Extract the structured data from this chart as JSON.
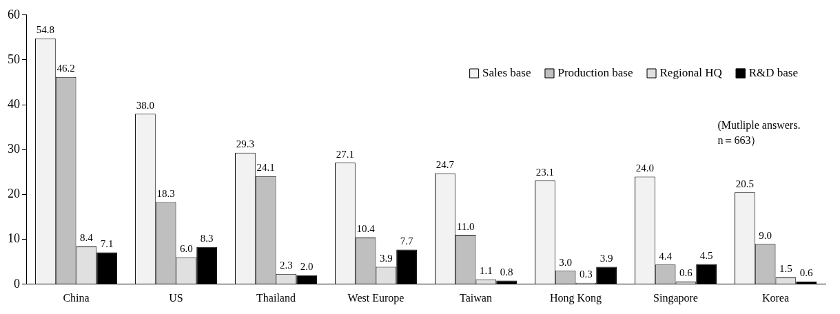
{
  "chart_data": {
    "type": "bar",
    "categories": [
      "China",
      "US",
      "Thailand",
      "West Europe",
      "Taiwan",
      "Hong Kong",
      "Singapore",
      "Korea"
    ],
    "series": [
      {
        "name": "Sales base",
        "color": "#f2f2f2",
        "values": [
          54.8,
          38.0,
          29.3,
          27.1,
          24.7,
          23.1,
          24.0,
          20.5
        ],
        "value_labels": [
          "54.8",
          "38.0",
          "29.3",
          "27.1",
          "24.7",
          "23.1",
          "24.0",
          "20.5"
        ]
      },
      {
        "name": "Production base",
        "color": "#bfbfbf",
        "values": [
          46.2,
          18.3,
          24.1,
          10.4,
          11.0,
          3.0,
          4.4,
          9.0
        ],
        "value_labels": [
          "46.2",
          "18.3",
          "24.1",
          "10.4",
          "11.0",
          "3.0",
          "4.4",
          "9.0"
        ]
      },
      {
        "name": "Regional HQ",
        "color": "#e0e0e0",
        "values": [
          8.4,
          6.0,
          2.3,
          3.9,
          1.1,
          0.3,
          0.6,
          1.5
        ],
        "value_labels": [
          "8.4",
          "6.0",
          "2.3",
          "3.9",
          "1.1",
          "0.3",
          "0.6",
          "1.5"
        ]
      },
      {
        "name": "R&D base",
        "color": "#000000",
        "values": [
          7.1,
          8.3,
          2.0,
          7.7,
          0.8,
          3.9,
          4.5,
          0.6
        ],
        "value_labels": [
          "7.1",
          "8.3",
          "2.0",
          "7.7",
          "0.8",
          "3.9",
          "4.5",
          "0.6"
        ]
      }
    ],
    "ylim": [
      0,
      60
    ],
    "yticks": [
      0,
      10,
      20,
      30,
      40,
      50,
      60
    ],
    "grid": false,
    "legend": "top right",
    "annotations": [
      "(Mutliple answers.",
      "n＝663）"
    ]
  }
}
